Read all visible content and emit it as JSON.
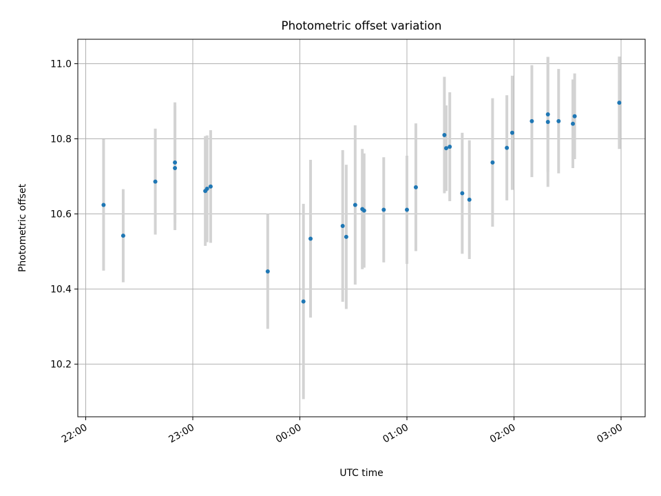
{
  "chart_data": {
    "type": "scatter",
    "title": "Photometric offset variation",
    "xlabel": "UTC time",
    "ylabel": "Photometric offset",
    "x_axis": "time",
    "ylim": [
      10.06,
      11.065
    ],
    "x_ticks": [
      "22:00",
      "23:00",
      "00:00",
      "01:00",
      "02:00",
      "03:00"
    ],
    "y_ticks": [
      "10.2",
      "10.4",
      "10.6",
      "10.8",
      "11.0"
    ],
    "grid": true,
    "colors": {
      "point": "#1f77b4",
      "errorbar": "#d3d3d3",
      "grid": "#b0b0b0"
    },
    "series": [
      {
        "points": [
          {
            "x": "22:10",
            "y": 10.624,
            "yerr": 0.175
          },
          {
            "x": "22:21",
            "y": 10.542,
            "yerr": 0.124
          },
          {
            "x": "22:39",
            "y": 10.686,
            "yerr": 0.141
          },
          {
            "x": "22:50",
            "y": 10.737,
            "yerr": 0.16
          },
          {
            "x": "22:50",
            "y": 10.722,
            "yerr": 0.165
          },
          {
            "x": "23:07",
            "y": 10.661,
            "yerr": 0.146
          },
          {
            "x": "23:08",
            "y": 10.667,
            "yerr": 0.142
          },
          {
            "x": "23:10",
            "y": 10.673,
            "yerr": 0.15
          },
          {
            "x": "23:42",
            "y": 10.447,
            "yerr": 0.153
          },
          {
            "x": "00:02",
            "y": 10.367,
            "yerr": 0.26
          },
          {
            "x": "00:06",
            "y": 10.534,
            "yerr": 0.21
          },
          {
            "x": "00:24",
            "y": 10.568,
            "yerr": 0.202
          },
          {
            "x": "00:26",
            "y": 10.539,
            "yerr": 0.192
          },
          {
            "x": "00:31",
            "y": 10.624,
            "yerr": 0.212
          },
          {
            "x": "00:35",
            "y": 10.613,
            "yerr": 0.16
          },
          {
            "x": "00:36",
            "y": 10.609,
            "yerr": 0.152
          },
          {
            "x": "00:47",
            "y": 10.611,
            "yerr": 0.14
          },
          {
            "x": "01:00",
            "y": 10.611,
            "yerr": 0.144
          },
          {
            "x": "01:05",
            "y": 10.671,
            "yerr": 0.17
          },
          {
            "x": "01:21",
            "y": 10.81,
            "yerr": 0.155
          },
          {
            "x": "01:22",
            "y": 10.775,
            "yerr": 0.114
          },
          {
            "x": "01:24",
            "y": 10.779,
            "yerr": 0.145
          },
          {
            "x": "01:31",
            "y": 10.655,
            "yerr": 0.161
          },
          {
            "x": "01:35",
            "y": 10.638,
            "yerr": 0.158
          },
          {
            "x": "01:48",
            "y": 10.737,
            "yerr": 0.171
          },
          {
            "x": "01:56",
            "y": 10.776,
            "yerr": 0.14
          },
          {
            "x": "01:59",
            "y": 10.816,
            "yerr": 0.152
          },
          {
            "x": "02:10",
            "y": 10.847,
            "yerr": 0.149
          },
          {
            "x": "02:19",
            "y": 10.865,
            "yerr": 0.153
          },
          {
            "x": "02:19",
            "y": 10.845,
            "yerr": 0.173
          },
          {
            "x": "02:25",
            "y": 10.847,
            "yerr": 0.139
          },
          {
            "x": "02:33",
            "y": 10.84,
            "yerr": 0.118
          },
          {
            "x": "02:34",
            "y": 10.86,
            "yerr": 0.114
          },
          {
            "x": "02:59",
            "y": 10.896,
            "yerr": 0.123
          }
        ]
      }
    ]
  }
}
